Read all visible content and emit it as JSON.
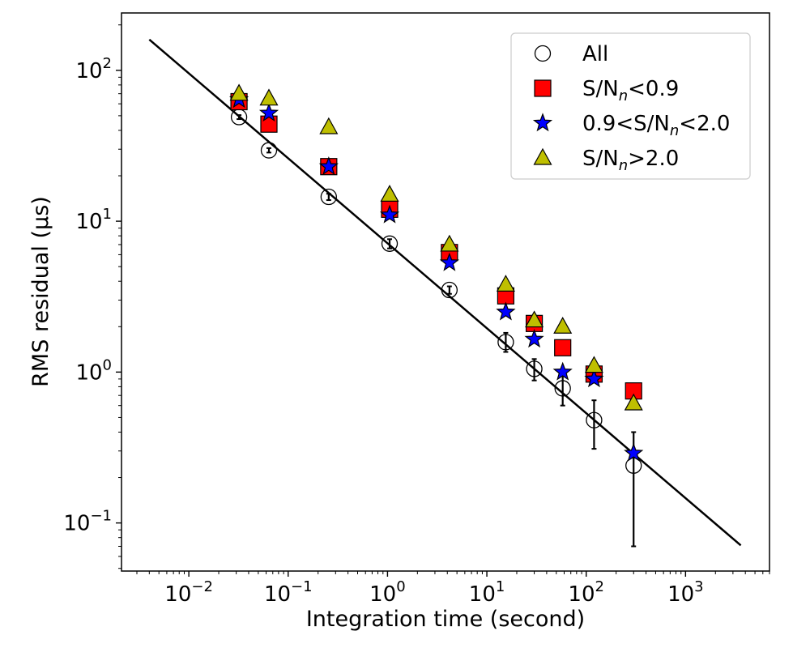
{
  "chart_data": {
    "type": "scatter",
    "xscale": "log",
    "yscale": "log",
    "xlabel": "Integration time (second)",
    "ylabel": "RMS residual (µs)",
    "xlim": [
      0.0021,
      7000
    ],
    "ylim": [
      0.048,
      240
    ],
    "xticks": [
      {
        "value": 0.01,
        "base": "10",
        "exp": "−2"
      },
      {
        "value": 0.1,
        "base": "10",
        "exp": "−1"
      },
      {
        "value": 1,
        "base": "10",
        "exp": "0"
      },
      {
        "value": 10,
        "base": "10",
        "exp": "1"
      },
      {
        "value": 100,
        "base": "10",
        "exp": "2"
      },
      {
        "value": 1000,
        "base": "10",
        "exp": "3"
      }
    ],
    "yticks": [
      {
        "value": 0.1,
        "base": "10",
        "exp": "−1"
      },
      {
        "value": 1,
        "base": "10",
        "exp": "0"
      },
      {
        "value": 10,
        "base": "10",
        "exp": "1"
      },
      {
        "value": 100,
        "base": "10",
        "exp": "2"
      }
    ],
    "fit_line": {
      "x": [
        0.004,
        3600
      ],
      "y": [
        160,
        0.071
      ],
      "color": "#000000"
    },
    "legend_position": "top-right",
    "series": [
      {
        "name": "All",
        "label_parts": [
          "All"
        ],
        "marker": "circle",
        "color": "#ffffff",
        "x": [
          0.032,
          0.064,
          0.256,
          1.05,
          4.2,
          15.5,
          30,
          58,
          120,
          300
        ],
        "y": [
          49,
          29.5,
          14.5,
          7.1,
          3.5,
          1.58,
          1.05,
          0.78,
          0.48,
          0.24
        ],
        "err_low": [
          47.5,
          28.5,
          13.8,
          6.6,
          3.3,
          1.36,
          0.88,
          0.6,
          0.31,
          0.07
        ],
        "err_high": [
          50.5,
          30.5,
          15.2,
          7.6,
          3.7,
          1.82,
          1.22,
          0.95,
          0.65,
          0.4
        ]
      },
      {
        "name": "S/Nn<0.9",
        "label_parts": [
          "S/N",
          "n",
          "<0.9"
        ],
        "marker": "square",
        "color": "#ff0000",
        "x": [
          0.032,
          0.064,
          0.256,
          1.05,
          4.2,
          15.5,
          30,
          58,
          120,
          300
        ],
        "y": [
          62,
          44,
          23,
          12,
          6.2,
          3.2,
          2.1,
          1.45,
          0.97,
          0.75
        ]
      },
      {
        "name": "0.9<S/Nn<2.0",
        "label_parts": [
          "0.9<S/N",
          "n",
          "<2.0"
        ],
        "marker": "star",
        "color": "#0000ff",
        "x": [
          0.032,
          0.064,
          0.256,
          1.05,
          4.2,
          15.5,
          30,
          58,
          120,
          300
        ],
        "y": [
          64,
          52,
          23,
          11,
          5.3,
          2.5,
          1.65,
          1.0,
          0.9,
          0.29
        ]
      },
      {
        "name": "S/Nn>2.0",
        "label_parts": [
          "S/N",
          "n",
          ">2.0"
        ],
        "marker": "triangle",
        "color": "#bfbf00",
        "x": [
          0.032,
          0.064,
          0.256,
          1.05,
          4.2,
          15.5,
          30,
          58,
          120,
          300
        ],
        "y": [
          70,
          65,
          42,
          15,
          7,
          3.8,
          2.2,
          2.0,
          1.1,
          0.62
        ]
      }
    ]
  }
}
